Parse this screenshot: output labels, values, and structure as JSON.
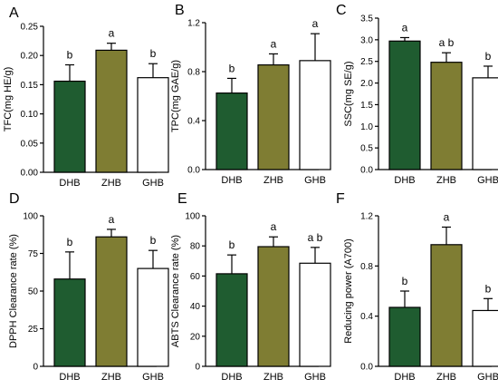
{
  "colors": {
    "DHB": "#1f5c30",
    "ZHB": "#7f7d33",
    "GHB": "#ffffff",
    "stroke": "#000000"
  },
  "chart_data": [
    {
      "panel": "A",
      "type": "bar",
      "categories": [
        "DHB",
        "ZHB",
        "GHB"
      ],
      "values": [
        0.156,
        0.209,
        0.162
      ],
      "errors": [
        0.028,
        0.012,
        0.024
      ],
      "sig_letters": [
        "b",
        "a",
        "b"
      ],
      "ylabel": "TFC(mg HE/g)",
      "ylim": [
        0,
        0.25
      ],
      "yticks": [
        "0.00",
        "0.05",
        "0.10",
        "0.15",
        "0.20",
        "0.25"
      ]
    },
    {
      "panel": "B",
      "type": "bar",
      "categories": [
        "DHB",
        "ZHB",
        "GHB"
      ],
      "values": [
        0.625,
        0.855,
        0.89
      ],
      "errors": [
        0.12,
        0.09,
        0.22
      ],
      "sig_letters": [
        "b",
        "a",
        "a"
      ],
      "ylabel": "TPC(mg GAE/g)",
      "ylim": [
        0,
        1.2
      ],
      "yticks": [
        "0.0",
        "0.4",
        "0.8",
        "1.2"
      ]
    },
    {
      "panel": "C",
      "type": "bar",
      "categories": [
        "DHB",
        "ZHB",
        "GHB"
      ],
      "values": [
        2.97,
        2.48,
        2.12
      ],
      "errors": [
        0.08,
        0.22,
        0.27
      ],
      "sig_letters": [
        "a",
        "a b",
        "b"
      ],
      "ylabel": "SSC(mg SE/g)",
      "ylim": [
        0,
        3.5
      ],
      "yticks": [
        "0.0",
        "0.5",
        "1.0",
        "1.5",
        "2.0",
        "2.5",
        "3.0",
        "3.5"
      ]
    },
    {
      "panel": "D",
      "type": "bar",
      "categories": [
        "DHB",
        "ZHB",
        "GHB"
      ],
      "values": [
        58,
        86,
        65
      ],
      "errors": [
        18,
        5,
        12
      ],
      "sig_letters": [
        "b",
        "a",
        "b"
      ],
      "ylabel": "DPPH Clearance rate (%)",
      "ylim": [
        0,
        100
      ],
      "yticks": [
        "0",
        "25",
        "50",
        "75",
        "100"
      ]
    },
    {
      "panel": "E",
      "type": "bar",
      "categories": [
        "DHB",
        "ZHB",
        "GHB"
      ],
      "values": [
        61.5,
        79.5,
        68.5
      ],
      "errors": [
        12.5,
        6.5,
        10.5
      ],
      "sig_letters": [
        "b",
        "a",
        "a b"
      ],
      "ylabel": "ABTS Clearance rate (%)",
      "ylim": [
        0,
        100
      ],
      "yticks": [
        "0",
        "20",
        "40",
        "60",
        "80",
        "100"
      ]
    },
    {
      "panel": "F",
      "type": "bar",
      "categories": [
        "DHB",
        "ZHB",
        "GHB"
      ],
      "values": [
        0.47,
        0.97,
        0.445
      ],
      "errors": [
        0.13,
        0.14,
        0.095
      ],
      "sig_letters": [
        "b",
        "a",
        "b"
      ],
      "ylabel": "Reducing power (A700)",
      "ylim": [
        0,
        1.2
      ],
      "yticks": [
        "0.0",
        "0.4",
        "0.8",
        "1.2"
      ]
    }
  ]
}
